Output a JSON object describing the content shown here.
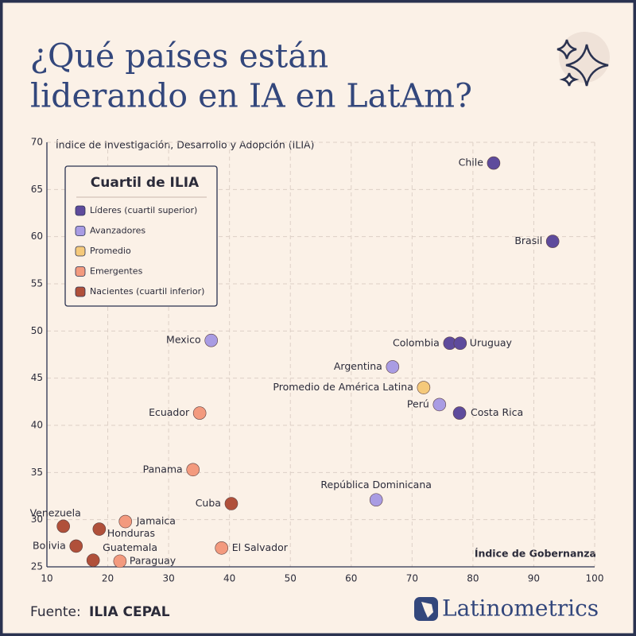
{
  "title": [
    "¿Qué países están",
    "liderando en IA en LatAm?"
  ],
  "chart_data": {
    "type": "scatter",
    "y_label": "Índice de Investigación, Desarrollo y Adopción (ILIA)",
    "x_label": "Índice de Gobernanza",
    "legend_title": "Cuartil de ILIA",
    "xlim": [
      10,
      100
    ],
    "xticks": [
      10,
      20,
      30,
      40,
      50,
      60,
      70,
      80,
      90,
      100
    ],
    "ylim": [
      25,
      70
    ],
    "yticks": [
      25,
      30,
      35,
      40,
      45,
      50,
      55,
      60,
      65,
      70
    ],
    "grid": true,
    "series": [
      {
        "name": "Líderes (cuartil superior)",
        "color": "#5e4b9c",
        "labels": [
          "Chile",
          "Brasil",
          "Colombia",
          "Uruguay",
          "Costa Rica"
        ],
        "x": [
          83.4,
          93.1,
          76.2,
          77.9,
          77.8
        ],
        "values": [
          67.8,
          59.5,
          48.7,
          48.7,
          41.3
        ]
      },
      {
        "name": "Avanzadores",
        "color": "#a99ce3",
        "labels": [
          "Mexico",
          "Argentina",
          "Perú",
          "República Dominicana"
        ],
        "x": [
          37.0,
          66.8,
          74.5,
          64.1
        ],
        "values": [
          49.0,
          46.2,
          42.2,
          32.1
        ]
      },
      {
        "name": "Promedio",
        "color": "#f5c97a",
        "labels": [
          "Promedio de América Latina"
        ],
        "x": [
          71.9
        ],
        "values": [
          44.0
        ]
      },
      {
        "name": "Emergentes",
        "color": "#f39a7e",
        "labels": [
          "Ecuador",
          "Panama",
          "Jamaica",
          "El Salvador",
          "Paraguay"
        ],
        "x": [
          35.1,
          34.0,
          22.9,
          38.7,
          22.0
        ],
        "values": [
          41.3,
          35.3,
          29.8,
          27.0,
          25.6
        ]
      },
      {
        "name": "Nacientes (cuartil inferior)",
        "color": "#b0503a",
        "labels": [
          "Cuba",
          "Venezuela",
          "Honduras",
          "Bolivia",
          "Guatemala"
        ],
        "x": [
          40.3,
          12.7,
          18.6,
          14.8,
          17.6
        ],
        "values": [
          31.7,
          29.3,
          29.0,
          27.2,
          25.7
        ]
      }
    ]
  },
  "source_label": "Fuente:",
  "source": "ILIA CEPAL",
  "brand": "Latinometrics"
}
